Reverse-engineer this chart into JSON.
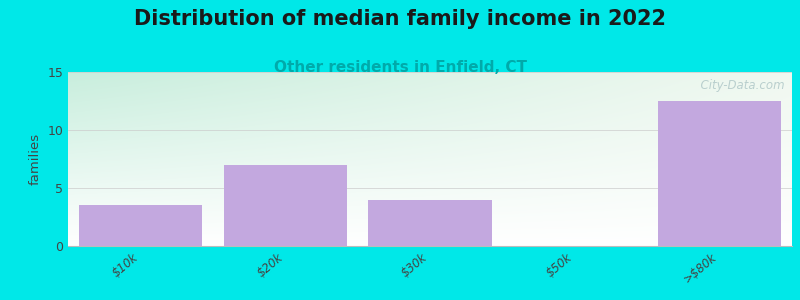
{
  "title": "Distribution of median family income in 2022",
  "subtitle": "Other residents in Enfield, CT",
  "categories": [
    "$10k",
    "$20k",
    "$30k",
    "$50k",
    ">$80k"
  ],
  "values": [
    3.5,
    7.0,
    4.0,
    0,
    12.5
  ],
  "bar_color": "#c3a8df",
  "background_color": "#00e8e8",
  "plot_bg_color_topleft": "#c8eedd",
  "plot_bg_color_topright": "#f0f8f0",
  "plot_bg_color_bottom": "#ffffff",
  "ylabel": "families",
  "ylim": [
    0,
    15
  ],
  "yticks": [
    0,
    5,
    10,
    15
  ],
  "title_fontsize": 15,
  "subtitle_fontsize": 11,
  "subtitle_color": "#00aaaa",
  "watermark": "  City-Data.com",
  "watermark_color": "#b0c8c8"
}
